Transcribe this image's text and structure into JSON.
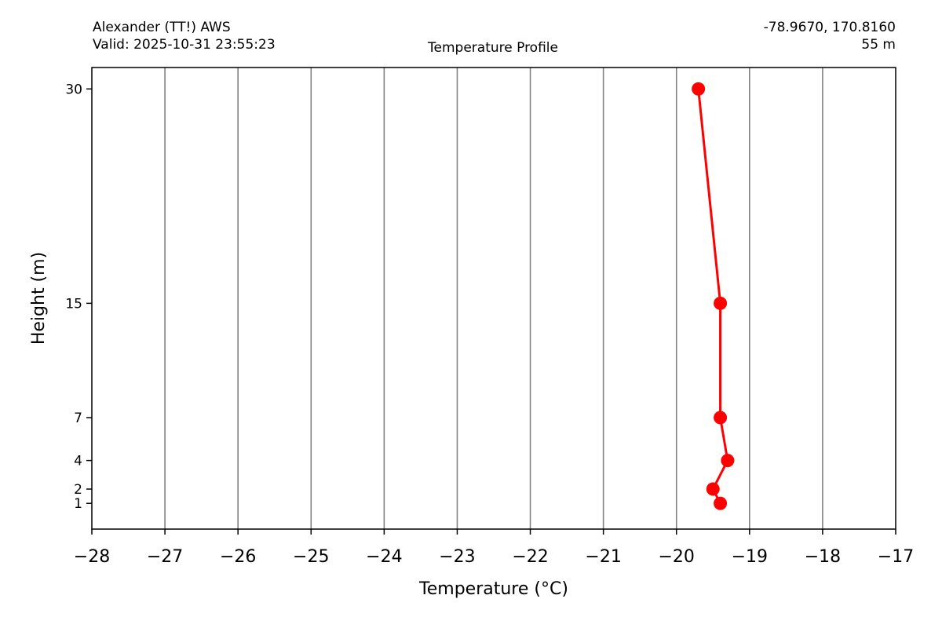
{
  "header": {
    "station": "Alexander (TT!) AWS",
    "valid": "Valid: 2025-10-31 23:55:23",
    "title": "Temperature Profile",
    "coords": "-78.9670, 170.8160",
    "elevation": "55 m"
  },
  "chart_data": {
    "type": "line",
    "title": "Temperature Profile",
    "xlabel": "Temperature (°C)",
    "ylabel": "Height (m)",
    "xlim": [
      -28,
      -17
    ],
    "ylim": [
      -0.8,
      31.5
    ],
    "xticks": [
      -28,
      -27,
      -26,
      -25,
      -24,
      -23,
      -22,
      -21,
      -20,
      -19,
      -18,
      -17
    ],
    "yticks": [
      1,
      2,
      4,
      7,
      15,
      30
    ],
    "grid": "vertical",
    "series": [
      {
        "color": "#ff0000",
        "marker": "circle",
        "points": [
          {
            "x": -19.4,
            "y": 1
          },
          {
            "x": -19.5,
            "y": 2
          },
          {
            "x": -19.3,
            "y": 4
          },
          {
            "x": -19.4,
            "y": 7
          },
          {
            "x": -19.4,
            "y": 15
          },
          {
            "x": -19.7,
            "y": 30
          }
        ]
      }
    ]
  }
}
